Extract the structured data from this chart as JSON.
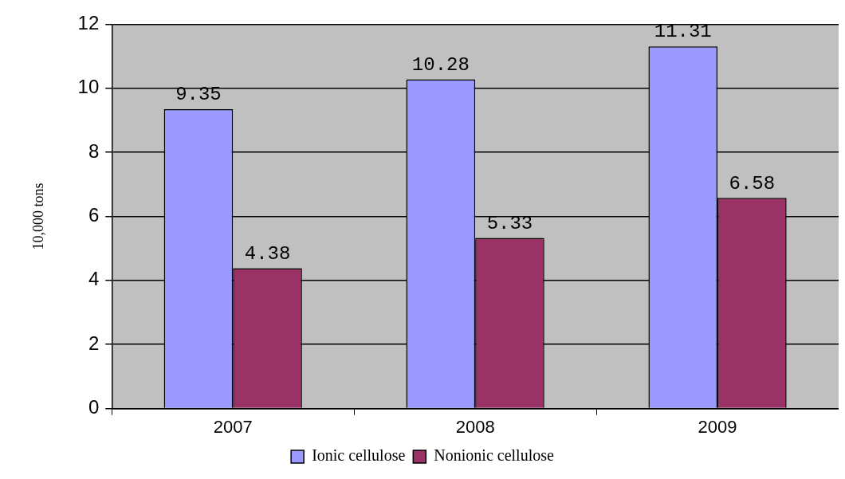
{
  "chart_data": {
    "type": "bar",
    "ylabel": "10,000 tons",
    "categories": [
      "2007",
      "2008",
      "2009"
    ],
    "series": [
      {
        "name": "Ionic cellulose",
        "color": "#9999ff",
        "values": [
          9.35,
          10.28,
          11.31
        ]
      },
      {
        "name": "Nonionic cellulose",
        "color": "#993366",
        "values": [
          4.38,
          5.33,
          6.58
        ]
      }
    ],
    "ylim": [
      0,
      12
    ],
    "yticks": [
      0,
      2,
      4,
      6,
      8,
      10,
      12
    ],
    "grid": "y",
    "legend": "bottom",
    "data_labels": true
  }
}
